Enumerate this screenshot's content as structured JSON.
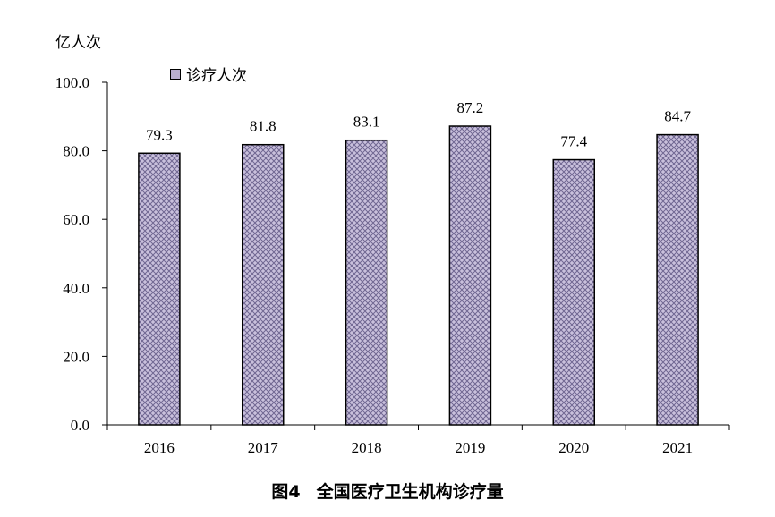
{
  "unit_label": "亿人次",
  "figure_label": "图4",
  "figure_title": "全国医疗卫生机构诊疗量",
  "colors": {
    "bar_fill": "#b9aed0",
    "bar_pattern": "#6f6691",
    "axis": "#000000"
  },
  "chart_data": {
    "type": "bar",
    "categories": [
      "2016",
      "2017",
      "2018",
      "2019",
      "2020",
      "2021"
    ],
    "series": [
      {
        "name": "诊疗人次",
        "values": [
          79.3,
          81.8,
          83.1,
          87.2,
          77.4,
          84.7
        ]
      }
    ],
    "value_labels": [
      "79.3",
      "81.8",
      "83.1",
      "87.2",
      "77.4",
      "84.7"
    ],
    "ylim": [
      0,
      100
    ],
    "yticks": [
      "0.0",
      "20.0",
      "40.0",
      "60.0",
      "80.0",
      "100.0"
    ],
    "legend_position": "top-left",
    "grid": false
  }
}
